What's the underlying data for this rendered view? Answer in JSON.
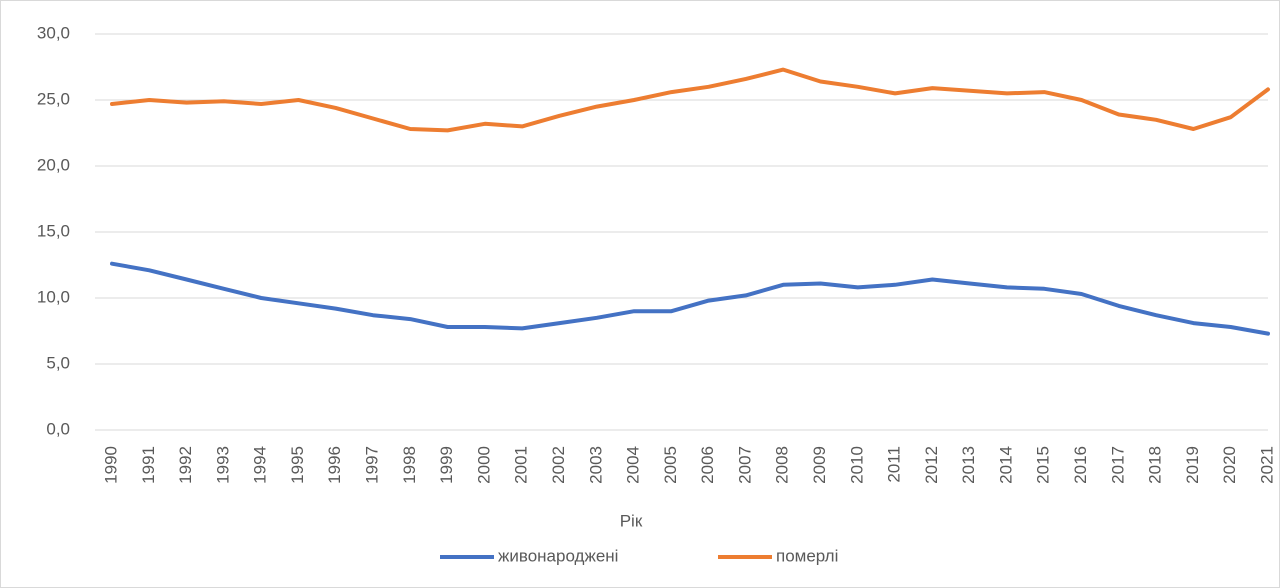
{
  "chart_data": {
    "type": "line",
    "x_label": "Рік",
    "categories": [
      "1990",
      "1991",
      "1992",
      "1993",
      "1994",
      "1995",
      "1996",
      "1997",
      "1998",
      "1999",
      "2000",
      "2001",
      "2002",
      "2003",
      "2004",
      "2005",
      "2006",
      "2007",
      "2008",
      "2009",
      "2010",
      "2011",
      "2012",
      "2013",
      "2014",
      "2015",
      "2016",
      "2017",
      "2018",
      "2019",
      "2020",
      "2021"
    ],
    "series": [
      {
        "name": "живонароджені",
        "color": "#4472c4",
        "values": [
          12.6,
          12.1,
          11.4,
          10.7,
          10.0,
          9.6,
          9.2,
          8.7,
          8.4,
          7.8,
          7.8,
          7.7,
          8.1,
          8.5,
          9.0,
          9.0,
          9.8,
          10.2,
          11.0,
          11.1,
          10.8,
          11.0,
          11.4,
          11.1,
          10.8,
          10.7,
          10.3,
          9.4,
          8.7,
          8.1,
          7.8,
          7.3
        ]
      },
      {
        "name": "померлі",
        "color": "#ed7d31",
        "values": [
          24.7,
          25.0,
          24.8,
          24.9,
          24.7,
          25.0,
          24.4,
          23.6,
          22.8,
          22.7,
          23.2,
          23.0,
          23.8,
          24.5,
          25.0,
          25.6,
          26.0,
          26.6,
          27.3,
          26.4,
          26.0,
          25.5,
          25.9,
          25.7,
          25.5,
          25.6,
          25.0,
          23.9,
          23.5,
          22.8,
          23.7,
          25.8
        ]
      }
    ],
    "ylim": [
      0,
      30
    ],
    "yticks": [
      {
        "value": 0,
        "label": "0,0"
      },
      {
        "value": 5,
        "label": "5,0"
      },
      {
        "value": 10,
        "label": "10,0"
      },
      {
        "value": 15,
        "label": "15,0"
      },
      {
        "value": 20,
        "label": "20,0"
      },
      {
        "value": 25,
        "label": "25,0"
      },
      {
        "value": 30,
        "label": "30,0"
      }
    ],
    "grid": true,
    "legend": "bottom"
  }
}
